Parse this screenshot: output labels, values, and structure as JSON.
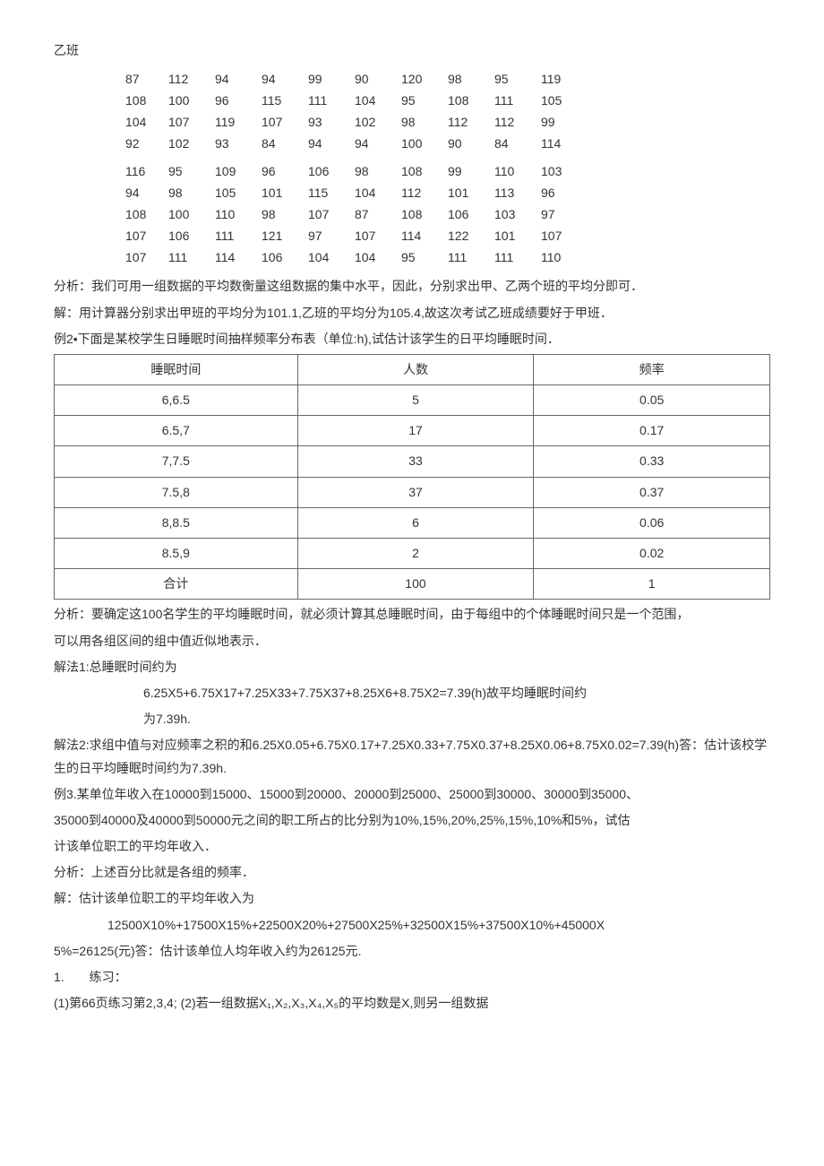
{
  "headings": {
    "classB": "乙班"
  },
  "grid": {
    "rows": [
      [
        "87",
        "112",
        "94",
        "94",
        "99",
        "90",
        "120",
        "98",
        "95",
        "119"
      ],
      [
        "108",
        "100",
        "96",
        "115",
        "111",
        "104",
        "95",
        "108",
        "111",
        "105"
      ],
      [
        "104",
        "107",
        "119",
        "107",
        "93",
        "102",
        "98",
        "112",
        "112",
        "99"
      ],
      [
        "92",
        "102",
        "93",
        "84",
        "94",
        "94",
        "100",
        "90",
        "84",
        "114"
      ],
      [
        "116",
        "95",
        "109",
        "96",
        "106",
        "98",
        "108",
        "99",
        "110",
        "103"
      ],
      [
        "94",
        "98",
        "105",
        "101",
        "115",
        "104",
        "112",
        "101",
        "113",
        "96"
      ],
      [
        "108",
        "100",
        "110",
        "98",
        "107",
        "87",
        "108",
        "106",
        "103",
        "97"
      ],
      [
        "107",
        "106",
        "111",
        "121",
        "97",
        "107",
        "114",
        "122",
        "101",
        "107"
      ],
      [
        "107",
        "111",
        "114",
        "106",
        "104",
        "104",
        "95",
        "111",
        "111",
        "110"
      ]
    ],
    "break_after": 4
  },
  "text": {
    "analysis1": "分析：我们可用一组数据的平均数衡量这组数据的集中水平，因此，分别求出甲、乙两个班的平均分即可．",
    "solution1": "解：用计算器分别求出甲班的平均分为101.1,乙班的平均分为105.4,故这次考试乙班成绩要好于甲班．",
    "ex2_intro": "例2•下面是某校学生日睡眠时间抽样频率分布表（单位:h),试估计该学生的日平均睡眠时间．",
    "analysis2a": "分析：要确定这100名学生的平均睡眠时间，就必须计算其总睡眠时间，由于每组中的个体睡眠时间只是一个范围，",
    "analysis2b": "可以用各组区间的组中值近似地表示．",
    "method1_label": "解法1:总睡眠时间约为",
    "method1_calc": "6.25X5+6.75X17+7.25X33+7.75X37+8.25X6+8.75X2=7.39(h)故平均睡眠时间约",
    "method1_end": "为7.39h.",
    "method2": "解法2:求组中值与对应频率之积的和6.25X0.05+6.75X0.17+7.25X0.33+7.75X0.37+8.25X0.06+8.75X0.02=7.39(h)答：估计该校学生的日平均睡眠时间约为7.39h.",
    "ex3a": "例3.某单位年收入在10000到15000、15000到20000、20000到25000、25000到30000、30000到35000、",
    "ex3b": "35000到40000及40000到50000元之间的职工所占的比分别为10%,15%,20%,25%,15%,10%和5%，试估",
    "ex3c": "计该单位职工的平均年收入．",
    "analysis3": "分析：上述百分比就是各组的频率．",
    "solution3_label": "解：估计该单位职工的平均年收入为",
    "solution3_calc": "12500X10%+17500X15%+22500X20%+27500X25%+32500X15%+37500X10%+45000X",
    "solution3_end": "5%=26125(元)答：估计该单位人均年收入约为26125元.",
    "practice_label": "1.　　练习：",
    "practice_item": "(1)第66页练习第2,3,4; (2)若一组数据X₁,X₂,X₃,X₄,X₅的平均数是X,则另一组数据"
  },
  "freq_table": {
    "headers": [
      "睡眠时间",
      "人数",
      "频率"
    ],
    "rows": [
      [
        "6,6.5",
        "5",
        "0.05"
      ],
      [
        "6.5,7",
        "17",
        "0.17"
      ],
      [
        "7,7.5",
        "33",
        "0.33"
      ],
      [
        "7.5,8",
        "37",
        "0.37"
      ],
      [
        "8,8.5",
        "6",
        "0.06"
      ],
      [
        "8.5,9",
        "2",
        "0.02"
      ],
      [
        "合计",
        "100",
        "1"
      ]
    ]
  }
}
